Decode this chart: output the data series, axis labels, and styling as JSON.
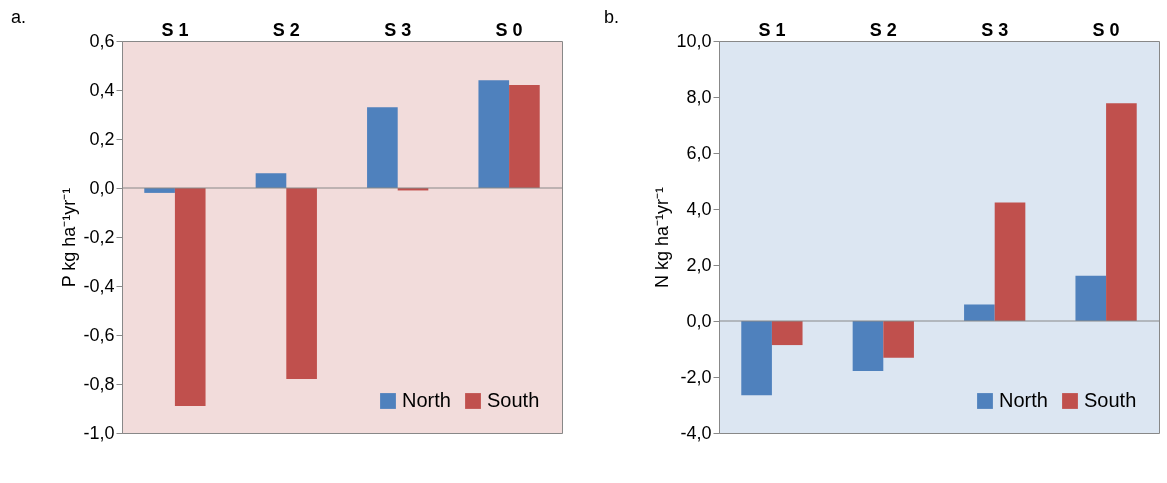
{
  "chart_data": [
    {
      "type": "bar",
      "title": "a.",
      "ylabel": "P kg ha⁻¹yr⁻¹",
      "categories": [
        "S 1",
        "S 2",
        "S 3",
        "S 0"
      ],
      "series": [
        {
          "name": "North",
          "color": "#4f81bd",
          "values": [
            -0.02,
            0.06,
            0.33,
            0.44
          ]
        },
        {
          "name": "South",
          "color": "#c0504d",
          "values": [
            -0.89,
            -0.78,
            -0.01,
            0.42
          ]
        }
      ],
      "ylim": [
        -1.0,
        0.6
      ],
      "yticks": [
        {
          "value": -1.0,
          "label": "-1,0"
        },
        {
          "value": -0.8,
          "label": "-0,8"
        },
        {
          "value": -0.6,
          "label": "-0,6"
        },
        {
          "value": -0.4,
          "label": "-0,4"
        },
        {
          "value": -0.2,
          "label": "-0,2"
        },
        {
          "value": 0.0,
          "label": "0,0"
        },
        {
          "value": 0.2,
          "label": "0,2"
        },
        {
          "value": 0.4,
          "label": "0,4"
        },
        {
          "value": 0.6,
          "label": "0,6"
        }
      ],
      "ref_lines": [
        {
          "axis": "y",
          "value": 0.0
        }
      ],
      "grid": false,
      "legend": "bottom right"
    },
    {
      "type": "bar",
      "title": "b.",
      "ylabel": "N kg ha⁻¹yr⁻¹",
      "categories": [
        "S 1",
        "S 2",
        "S 3",
        "S 0"
      ],
      "series": [
        {
          "name": "North",
          "color": "#4f81bd",
          "values": [
            -2.65,
            -1.79,
            0.59,
            1.62
          ]
        },
        {
          "name": "South",
          "color": "#c0504d",
          "values": [
            -0.86,
            -1.31,
            4.23,
            7.78
          ]
        }
      ],
      "ylim": [
        -4.0,
        10.0
      ],
      "yticks": [
        {
          "value": -4.0,
          "label": "-4,0"
        },
        {
          "value": -2.0,
          "label": "-2,0"
        },
        {
          "value": 0.0,
          "label": "0,0"
        },
        {
          "value": 2.0,
          "label": "2,0"
        },
        {
          "value": 4.0,
          "label": "4,0"
        },
        {
          "value": 6.0,
          "label": "6,0"
        },
        {
          "value": 8.0,
          "label": "8,0"
        },
        {
          "value": 10.0,
          "label": "10,0"
        }
      ],
      "ref_lines": [
        {
          "axis": "y",
          "value": 0.0
        }
      ],
      "grid": false,
      "legend": "bottom right"
    }
  ]
}
